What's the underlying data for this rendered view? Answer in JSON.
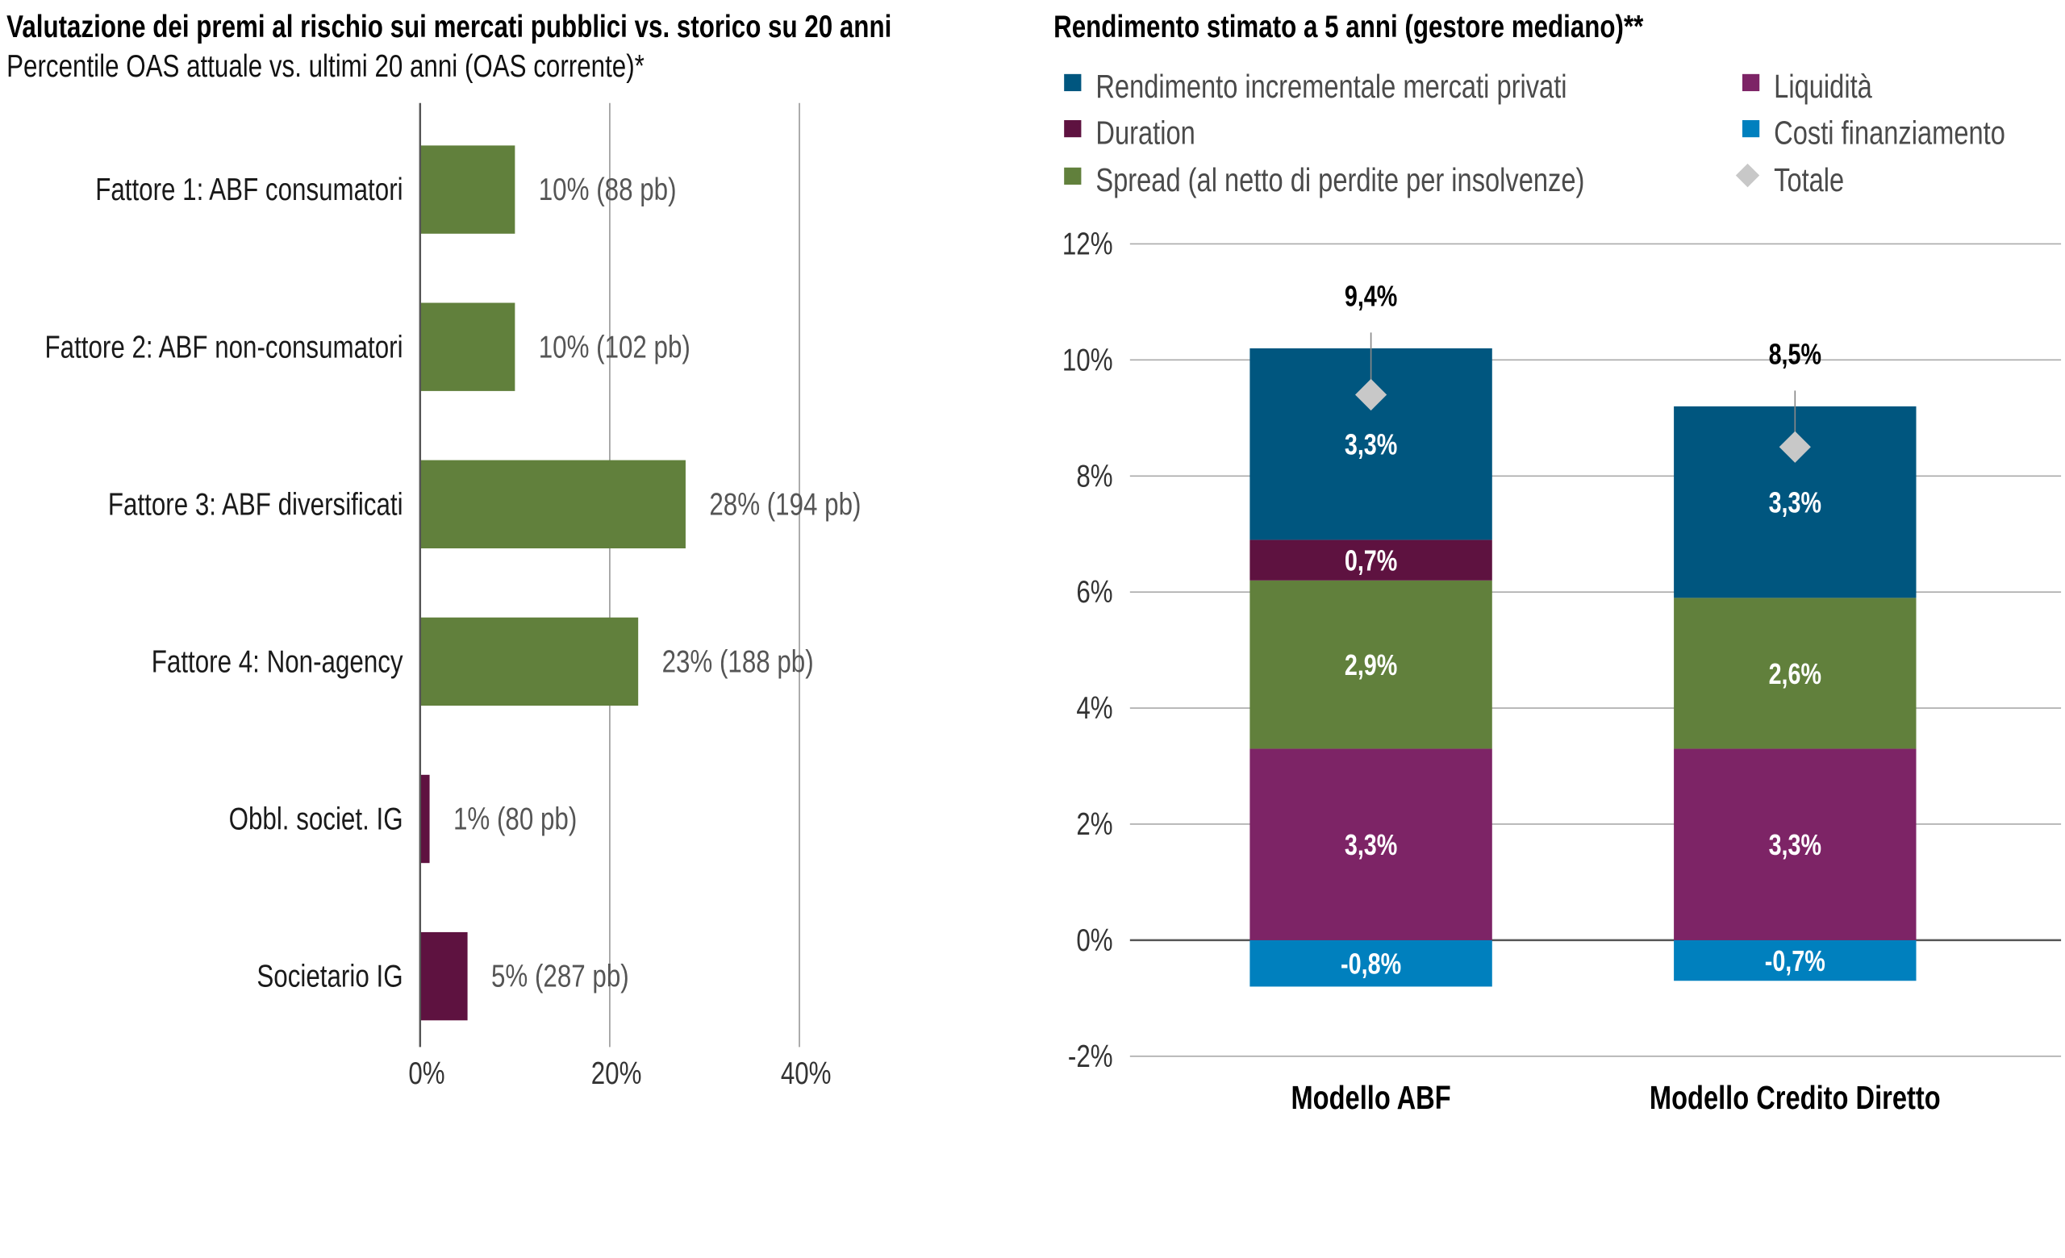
{
  "chart_data": [
    {
      "type": "bar",
      "orientation": "horizontal",
      "title": "Valutazione dei premi al rischio sui mercati pubblici vs. storico su 20 anni",
      "subtitle": "Percentile OAS attuale vs. ultimi 20 anni (OAS corrente)*",
      "categories": [
        "Fattore 1: ABF consumatori",
        "Fattore 2: ABF non-consumatori",
        "Fattore 3: ABF diversificati",
        "Fattore 4: Non-agency",
        "Obbl. societ. IG",
        "Societario IG"
      ],
      "values": [
        10,
        10,
        28,
        23,
        1,
        5
      ],
      "data_labels": [
        "10% (88 pb)",
        "10% (102 pb)",
        "28% (194 pb)",
        "23% (188 pb)",
        "1% (80 pb)",
        "5% (287 pb)"
      ],
      "bar_colors": [
        "#61803c",
        "#61803c",
        "#61803c",
        "#61803c",
        "#5e1240",
        "#5e1240"
      ],
      "xlim": [
        0,
        40
      ],
      "xticks": [
        0,
        20,
        40
      ],
      "xtick_labels": [
        "0%",
        "20%",
        "40%"
      ],
      "grid": true
    },
    {
      "type": "bar",
      "stacked": true,
      "title": "Rendimento stimato a 5 anni (gestore mediano)**",
      "categories": [
        "Modello ABF",
        "Modello Credito Diretto"
      ],
      "series": [
        {
          "name": "Costi finanziamento",
          "color": "#0080be",
          "values": [
            -0.8,
            -0.7
          ],
          "labels": [
            "-0,8%",
            "-0,7%"
          ]
        },
        {
          "name": "Liquidità",
          "color": "#7d2466",
          "values": [
            3.3,
            3.3
          ],
          "labels": [
            "3,3%",
            "3,3%"
          ]
        },
        {
          "name": "Spread (al netto di perdite per insolvenze)",
          "color": "#61803c",
          "values": [
            2.9,
            2.6
          ],
          "labels": [
            "2,9%",
            "2,6%"
          ]
        },
        {
          "name": "Duration",
          "color": "#5e1240",
          "values": [
            0.7,
            0
          ],
          "labels": [
            "0,7%",
            ""
          ]
        },
        {
          "name": "Rendimento incrementale mercati privati",
          "color": "#00567f",
          "values": [
            3.3,
            3.3
          ],
          "labels": [
            "3,3%",
            "3,3%"
          ]
        }
      ],
      "totals": {
        "name": "Totale",
        "color": "#c8c8c8",
        "values": [
          9.4,
          8.5
        ],
        "labels": [
          "9,4%",
          "8,5%"
        ]
      },
      "legend": {
        "placement": "top",
        "entries": [
          {
            "name": "Rendimento incrementale mercati privati",
            "color": "#00567f",
            "marker": "square"
          },
          {
            "name": "Duration",
            "color": "#5e1240",
            "marker": "square"
          },
          {
            "name": "Spread (al netto di perdite per insolvenze)",
            "color": "#61803c",
            "marker": "square"
          },
          {
            "name": "Liquidità",
            "color": "#7d2466",
            "marker": "square"
          },
          {
            "name": "Costi finanziamento",
            "color": "#0080be",
            "marker": "square"
          },
          {
            "name": "Totale",
            "color": "#c8c8c8",
            "marker": "diamond"
          }
        ]
      },
      "ylim": [
        -2,
        12
      ],
      "yticks": [
        12,
        10,
        8,
        6,
        4,
        2,
        0,
        -2
      ],
      "ytick_labels": [
        "12%",
        "10%",
        "8%",
        "6%",
        "4%",
        "2%",
        "0%",
        "-2%"
      ],
      "grid": true
    }
  ]
}
